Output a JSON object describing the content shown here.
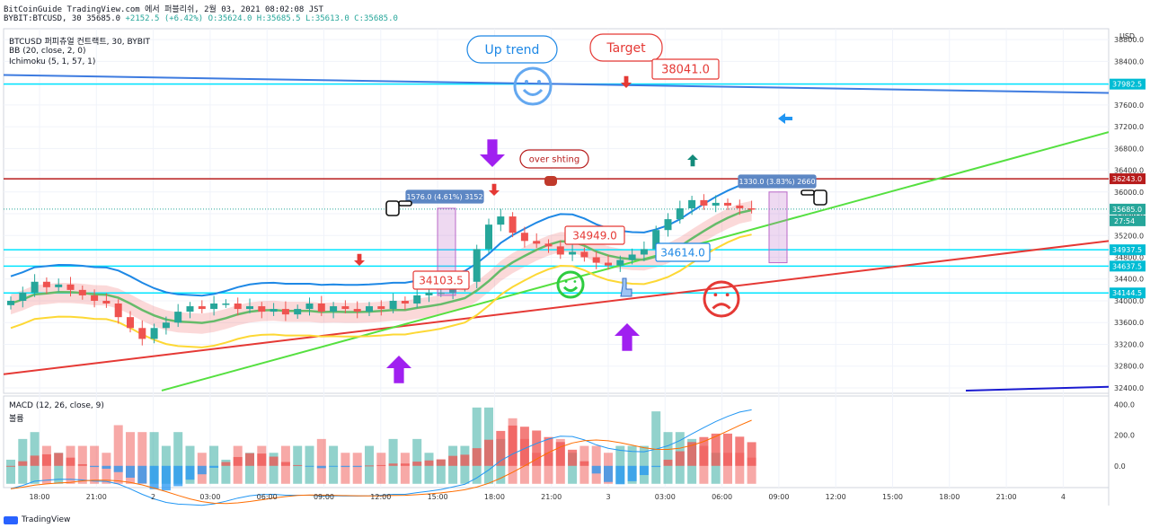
{
  "header": {
    "line1": "BitCoinGuide TradingView.com 에서 퍼블리쉬, 2월 03, 2021 08:02:08 JST",
    "line2_symbol": "BYBIT:BTCUSD, 30",
    "line2_price": "35685.0",
    "line2_change": "+2152.5 (+6.42%)",
    "line2_ohlc": "O:35624.0 H:35685.5 L:35613.0 C:35685.0"
  },
  "legend": {
    "symbol": "BTCUSD 퍼피츄얼 컨트랙트, 30, BYBIT",
    "bb": "BB (20, close, 2, 0)",
    "ichimoku": "Ichimoku (5, 1, 57, 1)",
    "macd": "MACD (12, 26, close, 9)",
    "volume": "볼륨"
  },
  "footer": {
    "brand": "TradingView"
  },
  "chart_data": {
    "type": "line",
    "axis_currency": "USD",
    "y_ticks": [
      38800,
      38400,
      38000,
      37600,
      37200,
      36800,
      36400,
      36000,
      35600,
      35200,
      34800,
      34400,
      34000,
      33600,
      33200,
      32800,
      32400
    ],
    "ylim": [
      32300,
      39000
    ],
    "x_ticks": [
      "18:00",
      "21:00",
      "2",
      "03:00",
      "06:00",
      "09:00",
      "12:00",
      "15:00",
      "18:00",
      "21:00",
      "3",
      "03:00",
      "06:00",
      "09:00",
      "12:00",
      "15:00",
      "18:00",
      "21:00",
      "4"
    ],
    "price_labels": [
      {
        "value": 37982.5,
        "text": "37982.5",
        "color": "#00bcd4"
      },
      {
        "value": 36243.0,
        "text": "36243.0",
        "color": "#b71c1c"
      },
      {
        "value": 35685.0,
        "text": "35685.0",
        "color": "#26a69a"
      },
      {
        "value": 34937.5,
        "text": "34937.5",
        "color": "#00bcd4"
      },
      {
        "value": 34637.5,
        "text": "34637.5",
        "color": "#00bcd4"
      },
      {
        "value": 34144.5,
        "text": "34144.5",
        "color": "#00bcd4"
      }
    ],
    "countdown": "27:54",
    "horizontal_levels": [
      {
        "value": 37982.5,
        "color": "#00e5ff"
      },
      {
        "value": 36243.0,
        "color": "#b71c1c"
      },
      {
        "value": 34937.5,
        "color": "#00e5ff"
      },
      {
        "value": 34637.5,
        "color": "#00e5ff"
      },
      {
        "value": 34144.5,
        "color": "#00e5ff"
      }
    ],
    "close_series": [
      34000,
      34150,
      34350,
      34250,
      34300,
      34200,
      34100,
      34000,
      33950,
      33700,
      33500,
      33300,
      33500,
      33600,
      33800,
      33900,
      33850,
      33950,
      33950,
      33850,
      33900,
      33800,
      33850,
      33750,
      33850,
      33950,
      33800,
      33900,
      33850,
      33800,
      33900,
      33850,
      34000,
      33950,
      34100,
      34150,
      34150,
      34250,
      34350,
      34950,
      35400,
      35550,
      35250,
      35100,
      35050,
      35000,
      34850,
      34900,
      34800,
      34700,
      34650,
      34750,
      34850,
      34950,
      35300,
      35500,
      35700,
      35850,
      35750,
      35800,
      35750,
      35700,
      35685
    ],
    "annotations": [
      {
        "text": "Up trend",
        "color": "#1e88e5"
      },
      {
        "text": "Target",
        "color": "#e53935"
      },
      {
        "text": "38041.0",
        "color": "#e53935"
      },
      {
        "text": "over shting",
        "color": "#b71c1c"
      },
      {
        "text": "34949.0",
        "color": "#e53935"
      },
      {
        "text": "34614.0",
        "color": "#1e88e5"
      },
      {
        "text": "34103.5",
        "color": "#e53935"
      },
      {
        "text": "1576.0 (4.61%) 3152",
        "color": "#ffffff"
      },
      {
        "text": "1330.0 (3.83%) 2660",
        "color": "#ffffff"
      }
    ],
    "macd_ticks": [
      400.0,
      200.0,
      0.0
    ]
  }
}
